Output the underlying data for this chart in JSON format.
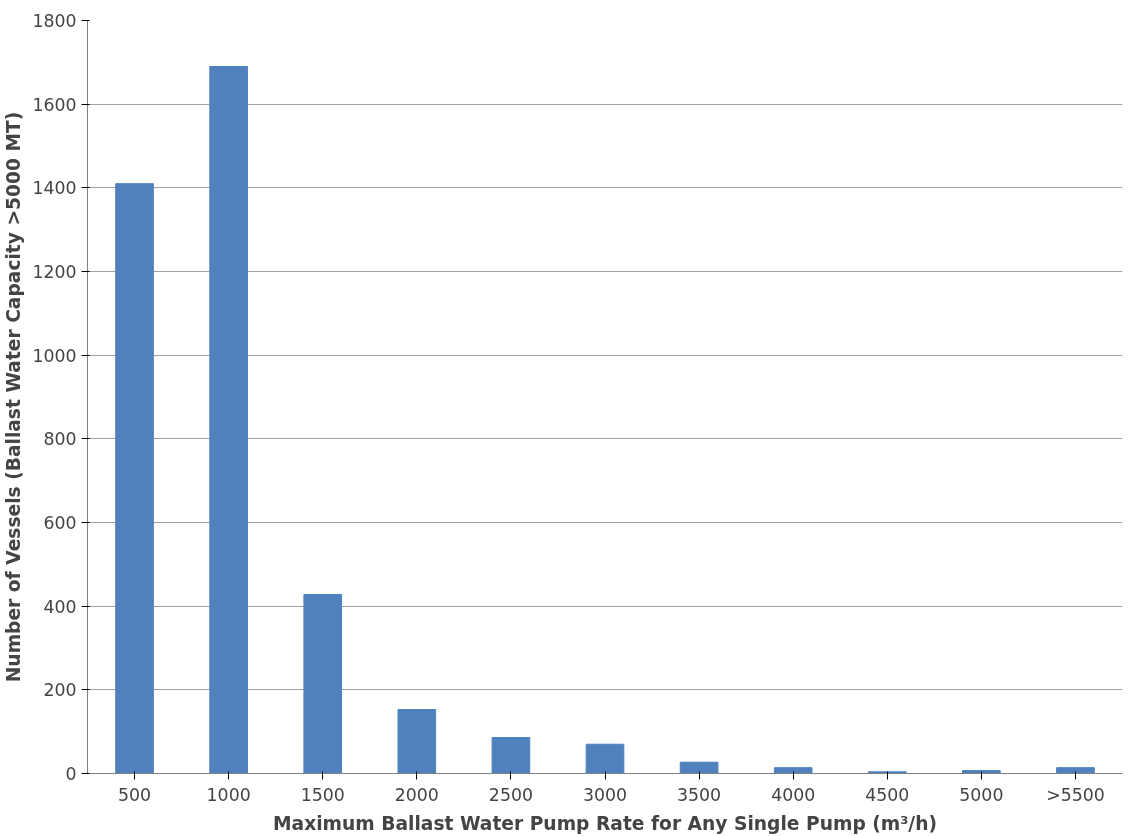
{
  "chart_data": {
    "type": "bar",
    "xlabel": "Maximum Ballast Water Pump Rate for Any Single Pump (m³/h)",
    "ylabel": "Number of Vessels (Ballast Water Capacity >5000 MT)",
    "categories": [
      "500",
      "1000",
      "1500",
      "2000",
      "2500",
      "3000",
      "3500",
      "4000",
      "4500",
      "5000",
      ">5500"
    ],
    "values": [
      1410,
      1690,
      428,
      153,
      86,
      70,
      27,
      14,
      4,
      7,
      14
    ],
    "color": "#4f81bd",
    "ylim": [
      0,
      1800
    ],
    "yticks": [
      0,
      200,
      400,
      600,
      800,
      1000,
      1200,
      1400,
      1600,
      1800
    ],
    "grid": "y"
  }
}
